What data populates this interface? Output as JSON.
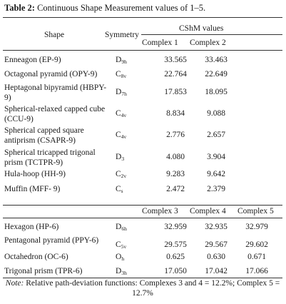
{
  "caption": {
    "label": "Table 2:",
    "text": "Continuous Shape Measurement values of 1–5."
  },
  "headers": {
    "shape": "Shape",
    "symmetry": "Symmetry",
    "cshm": "CShM values",
    "complex1": "Complex 1",
    "complex2": "Complex 2",
    "complex3": "Complex 3",
    "complex4": "Complex 4",
    "complex5": "Complex 5"
  },
  "section1": [
    {
      "shape": "Enneagon (EP-9)",
      "sym_main": "D",
      "sym_sub": "9h",
      "v1": "33.565",
      "v2": "33.463"
    },
    {
      "shape": "Octagonal pyramid (OPY-9)",
      "sym_main": "C",
      "sym_sub": "8v",
      "v1": "22.764",
      "v2": "22.649"
    },
    {
      "shape": "Heptagonal bipyramid (HBPY-9)",
      "sym_main": "D",
      "sym_sub": "7h",
      "v1": "17.853",
      "v2": "18.095"
    },
    {
      "shape": "Spherical-relaxed capped cube (CCU-9)",
      "sym_main": "C",
      "sym_sub": "4v",
      "v1": "8.834",
      "v2": "9.088"
    },
    {
      "shape": "Spherical capped square antiprism (CSAPR-9)",
      "sym_main": "C",
      "sym_sub": "4v",
      "v1": "2.776",
      "v2": "2.657"
    },
    {
      "shape": "Spherical tricapped trigonal prism (TCTPR-9)",
      "sym_main": "D",
      "sym_sub": "3",
      "v1": "4.080",
      "v2": "3.904"
    },
    {
      "shape": "Hula-hoop (HH-9)",
      "sym_main": "C",
      "sym_sub": "2v",
      "v1": "9.283",
      "v2": "9.642"
    },
    {
      "shape": "Muffin (MFF- 9)",
      "sym_main": "C",
      "sym_sub": "s",
      "v1": "2.472",
      "v2": "2.379"
    }
  ],
  "section2": [
    {
      "shape": "Hexagon (HP-6)",
      "sym_main": "D",
      "sym_sub": "6h",
      "v3": "32.959",
      "v4": "32.935",
      "v5": "32.979"
    },
    {
      "shape": "Pentagonal pyramid (PPY-6)",
      "sym_main": "C",
      "sym_sub": "5v",
      "v3": "29.575",
      "v4": "29.567",
      "v5": "29.602"
    },
    {
      "shape": "Octahedron (OC-6)",
      "sym_main": "O",
      "sym_sub": "h",
      "v3": "0.625",
      "v4": "0.630",
      "v5": "0.671"
    },
    {
      "shape": "Trigonal prism (TPR-6)",
      "sym_main": "D",
      "sym_sub": "3h",
      "v3": "17.050",
      "v4": "17.042",
      "v5": "17.066"
    }
  ],
  "note": {
    "label": "Note:",
    "text": "Relative path-deviation functions: Complexes 3 and 4 = 12.2%; Complex 5 = 12.7%"
  }
}
